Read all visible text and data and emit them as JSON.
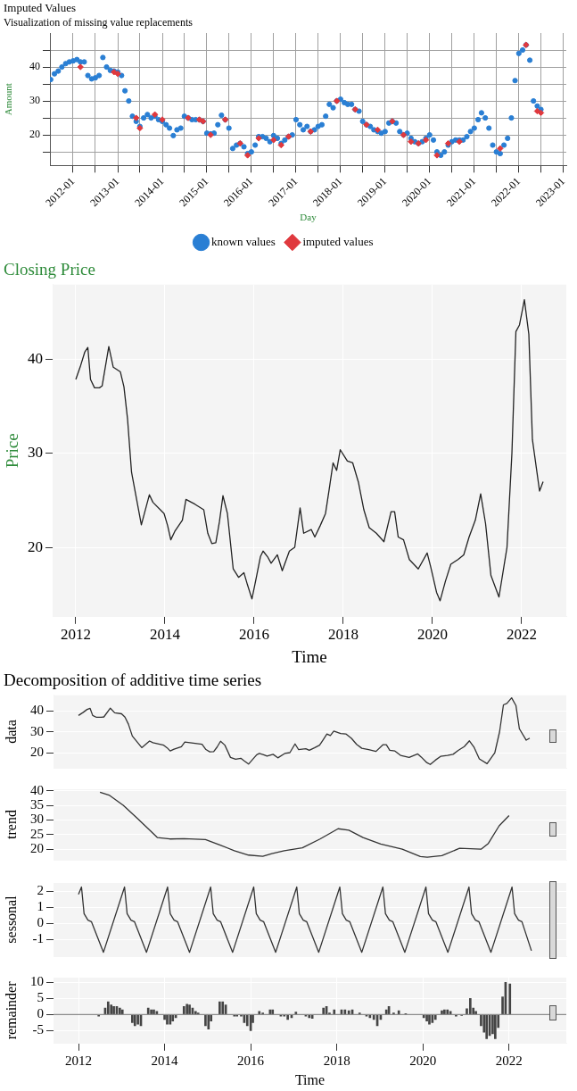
{
  "chart_data": [
    {
      "type": "scatter",
      "title": "Imputed Values",
      "subtitle": "Visualization of missing value replacements",
      "xlabel": "Day",
      "ylabel": "Amount",
      "marker": "circle",
      "legend": "bottom",
      "grid": true,
      "xlim": [
        "2011-06-25",
        "2023-01-25"
      ],
      "xticks": [
        "2012-01",
        {
          "value": "2012-07",
          "label": null
        },
        "2013-01",
        {
          "value": "2013-07",
          "label": null
        },
        "2014-01",
        {
          "value": "2014-07",
          "label": null
        },
        "2015-01",
        {
          "value": "2015-07",
          "label": null
        },
        "2016-01",
        {
          "value": "2016-07",
          "label": null
        },
        "2017-01",
        {
          "value": "2017-07",
          "label": null
        },
        "2018-01",
        {
          "value": "2018-07",
          "label": null
        },
        "2019-01",
        {
          "value": "2019-07",
          "label": null
        },
        "2020-01",
        {
          "value": "2020-07",
          "label": null
        },
        "2021-01",
        {
          "value": "2021-07",
          "label": null
        },
        "2022-01",
        {
          "value": "2022-07",
          "label": null
        },
        "2023-01"
      ],
      "ylim": [
        11,
        50
      ],
      "yticks": [
        {
          "value": 15,
          "label": null
        },
        20,
        {
          "value": 25,
          "label": null
        },
        30,
        {
          "value": 35,
          "label": null
        },
        40,
        {
          "value": 45,
          "label": null
        }
      ],
      "series": [
        {
          "name": "known values",
          "color": "#2a7fd4",
          "x": [
            "2011-07",
            "2011-08",
            "2011-09",
            "2011-10",
            "2011-11",
            "2011-12",
            "2012-01",
            "2012-02",
            "2012-03",
            "2012-04",
            "2012-05",
            "2012-06",
            "2012-07",
            "2012-08",
            "2012-09",
            "2012-10",
            "2012-11",
            "2012-12",
            "2013-01",
            "2013-02",
            "2013-03",
            "2013-04",
            "2013-05",
            "2013-06",
            "2013-07",
            "2013-08",
            "2013-09",
            "2013-10",
            "2013-11",
            "2013-12",
            "2014-01",
            "2014-02",
            "2014-03",
            "2014-04",
            "2014-05",
            "2014-06",
            "2014-07",
            "2014-08",
            "2014-09",
            "2014-10",
            "2014-11",
            "2014-12",
            "2015-01",
            "2015-02",
            "2015-03",
            "2015-04",
            "2015-05",
            "2015-06",
            "2015-07",
            "2015-08",
            "2015-09",
            "2015-10",
            "2015-11",
            "2015-12",
            "2016-01",
            "2016-02",
            "2016-03",
            "2016-04",
            "2016-05",
            "2016-06",
            "2016-07",
            "2016-08",
            "2016-09",
            "2016-10",
            "2016-11",
            "2016-12",
            "2017-01",
            "2017-02",
            "2017-03",
            "2017-04",
            "2017-05",
            "2017-06",
            "2017-07",
            "2017-08",
            "2017-09",
            "2017-10",
            "2017-11",
            "2017-12",
            "2018-01",
            "2018-02",
            "2018-03",
            "2018-04",
            "2018-05",
            "2018-06",
            "2018-07",
            "2018-08",
            "2018-09",
            "2018-10",
            "2018-11",
            "2018-12",
            "2019-01",
            "2019-02",
            "2019-03",
            "2019-04",
            "2019-05",
            "2019-06",
            "2019-07",
            "2019-08",
            "2019-09",
            "2019-10",
            "2019-11",
            "2019-12",
            "2020-01",
            "2020-02",
            "2020-03",
            "2020-04",
            "2020-05",
            "2020-06",
            "2020-07",
            "2020-08",
            "2020-09",
            "2020-10",
            "2020-11",
            "2020-12",
            "2021-01",
            "2021-02",
            "2021-03",
            "2021-04",
            "2021-05",
            "2021-06",
            "2021-07",
            "2021-08",
            "2021-09",
            "2021-10",
            "2021-11",
            "2021-12",
            "2022-01",
            "2022-02",
            "2022-03",
            "2022-04",
            "2022-05",
            "2022-06",
            "2022-07"
          ],
          "values": [
            36.3,
            38.0,
            38.8,
            40.0,
            41.0,
            41.5,
            41.8,
            42.2,
            41.5,
            41.5,
            37.5,
            36.5,
            36.8,
            37.5,
            42.8,
            40.0,
            39.0,
            38.8,
            38.5,
            37.5,
            33.0,
            30.0,
            25.5,
            24.0,
            22.5,
            25.0,
            26.0,
            25.0,
            25.5,
            24.5,
            24.0,
            23.0,
            22.0,
            19.8,
            21.5,
            22.0,
            25.5,
            25.0,
            24.5,
            24.5,
            24.5,
            24.0,
            20.5,
            20.3,
            20.5,
            23.0,
            25.8,
            24.5,
            22.0,
            16.0,
            17.0,
            17.5,
            16.5,
            14.5,
            15.0,
            17.0,
            19.5,
            19.5,
            19.0,
            18.0,
            19.8,
            19.0,
            17.5,
            18.5,
            19.5,
            20.0,
            24.5,
            23.0,
            21.5,
            22.5,
            21.0,
            21.5,
            22.5,
            23.0,
            25.5,
            29.0,
            28.0,
            30.0,
            30.5,
            29.5,
            29.0,
            29.0,
            27.5,
            27.0,
            24.0,
            23.0,
            22.5,
            21.5,
            21.0,
            20.5,
            21.0,
            23.5,
            24.0,
            23.5,
            21.0,
            20.0,
            20.5,
            19.0,
            18.0,
            17.5,
            18.0,
            19.0,
            20.0,
            18.5,
            15.0,
            14.0,
            15.0,
            17.0,
            18.0,
            18.5,
            18.5,
            18.5,
            19.5,
            21.0,
            22.0,
            24.5,
            26.5,
            25.0,
            22.0,
            17.0,
            15.0,
            14.5,
            17.0,
            19.0,
            25.0,
            36.0,
            44.0,
            45.0,
            46.5,
            42.0,
            30.0,
            28.5,
            27.5
          ]
        },
        {
          "name": "imputed values",
          "color": "#e0393e",
          "marker": "diamond",
          "x": [
            "2012-03",
            "2012-12",
            "2013-01",
            "2013-06",
            "2013-07",
            "2013-11",
            "2014-01",
            "2014-08",
            "2014-11",
            "2014-12",
            "2015-02",
            "2015-06",
            "2015-10",
            "2015-12",
            "2016-03",
            "2016-07",
            "2016-09",
            "2016-11",
            "2017-05",
            "2017-12",
            "2018-05",
            "2018-08",
            "2018-11",
            "2019-03",
            "2019-06",
            "2019-08",
            "2019-10",
            "2019-12",
            "2020-03",
            "2020-06",
            "2020-09",
            "2021-08",
            "2022-03",
            "2022-06",
            "2022-07"
          ],
          "values": [
            40.0,
            38.5,
            38.0,
            25.0,
            22.0,
            26.0,
            24.5,
            25.0,
            24.5,
            24.0,
            20.0,
            24.5,
            17.5,
            14.0,
            19.0,
            18.5,
            17.0,
            19.5,
            21.0,
            30.0,
            27.5,
            23.0,
            21.5,
            24.0,
            20.0,
            18.0,
            17.5,
            18.5,
            14.0,
            17.5,
            18.0,
            16.0,
            46.5,
            27.0,
            26.5
          ]
        }
      ]
    },
    {
      "type": "line",
      "title": "Closing Price",
      "xlabel": "Time",
      "ylabel": "Price",
      "grid": true,
      "xlim": [
        2011.48,
        2023
      ],
      "xticks": [
        2012,
        2014,
        2016,
        2018,
        2020,
        2022
      ],
      "ylim": [
        12.6,
        48
      ],
      "yticks": [
        20,
        30,
        40
      ],
      "x": [
        2012.0,
        2012.11,
        2012.2,
        2012.27,
        2012.33,
        2012.42,
        2012.53,
        2012.59,
        2012.74,
        2012.84,
        2013.0,
        2013.08,
        2013.16,
        2013.25,
        2013.47,
        2013.65,
        2013.73,
        2013.98,
        2014.06,
        2014.13,
        2014.22,
        2014.39,
        2014.47,
        2014.67,
        2014.87,
        2014.96,
        2015.05,
        2015.14,
        2015.22,
        2015.3,
        2015.4,
        2015.53,
        2015.65,
        2015.77,
        2015.85,
        2015.95,
        2016.04,
        2016.14,
        2016.2,
        2016.3,
        2016.38,
        2016.52,
        2016.63,
        2016.79,
        2016.91,
        2017.03,
        2017.11,
        2017.28,
        2017.36,
        2017.48,
        2017.6,
        2017.68,
        2017.77,
        2017.85,
        2017.93,
        2018.09,
        2018.21,
        2018.34,
        2018.46,
        2018.58,
        2018.74,
        2018.91,
        2019.07,
        2019.15,
        2019.23,
        2019.35,
        2019.48,
        2019.68,
        2019.88,
        2019.96,
        2020.09,
        2020.17,
        2020.29,
        2020.41,
        2020.57,
        2020.7,
        2020.82,
        2020.96,
        2021.08,
        2021.19,
        2021.31,
        2021.49,
        2021.67,
        2021.78,
        2021.87,
        2021.95,
        2022.06,
        2022.16,
        2022.24,
        2022.4,
        2022.48
      ],
      "series": [
        {
          "color": "#222222",
          "values": [
            37.9,
            39.4,
            40.8,
            41.3,
            37.9,
            37.0,
            37.0,
            37.2,
            41.4,
            39.2,
            38.7,
            37.1,
            33.7,
            28.0,
            22.4,
            25.6,
            24.8,
            23.6,
            22.3,
            20.8,
            21.7,
            22.9,
            25.1,
            24.6,
            24.0,
            21.5,
            20.4,
            20.5,
            22.7,
            25.5,
            23.6,
            17.7,
            16.8,
            17.3,
            16.0,
            14.5,
            16.6,
            19.0,
            19.6,
            19.0,
            18.3,
            19.2,
            17.5,
            19.6,
            20.0,
            24.2,
            21.5,
            21.9,
            21.1,
            22.3,
            23.6,
            26.1,
            29.0,
            28.2,
            30.4,
            29.2,
            29.0,
            26.9,
            24.0,
            22.1,
            21.5,
            20.6,
            23.8,
            23.8,
            21.1,
            20.8,
            18.7,
            17.7,
            19.4,
            17.9,
            15.2,
            14.3,
            16.4,
            18.2,
            18.7,
            19.2,
            21.1,
            22.9,
            25.7,
            22.5,
            17.0,
            14.7,
            20.0,
            30.0,
            43.0,
            43.7,
            46.4,
            42.7,
            31.5,
            26.0,
            27.0
          ]
        }
      ]
    },
    {
      "type": "line",
      "title": "Decomposition of additive time series",
      "ylabel": "data",
      "grid": true,
      "tick_labels": "y",
      "xlim": [
        2011.42,
        2023.33
      ],
      "ylim": [
        12.7,
        47.6
      ],
      "yticks": [
        20,
        30,
        40
      ],
      "x": [
        2012.0,
        2012.11,
        2012.2,
        2012.27,
        2012.33,
        2012.42,
        2012.53,
        2012.59,
        2012.74,
        2012.84,
        2013.0,
        2013.08,
        2013.16,
        2013.25,
        2013.47,
        2013.65,
        2013.73,
        2013.98,
        2014.06,
        2014.13,
        2014.22,
        2014.39,
        2014.47,
        2014.67,
        2014.87,
        2014.96,
        2015.05,
        2015.14,
        2015.22,
        2015.3,
        2015.4,
        2015.53,
        2015.65,
        2015.77,
        2015.85,
        2015.95,
        2016.04,
        2016.14,
        2016.2,
        2016.3,
        2016.38,
        2016.52,
        2016.63,
        2016.79,
        2016.91,
        2017.03,
        2017.11,
        2017.28,
        2017.36,
        2017.48,
        2017.6,
        2017.68,
        2017.77,
        2017.85,
        2017.93,
        2018.09,
        2018.21,
        2018.34,
        2018.46,
        2018.58,
        2018.74,
        2018.91,
        2019.07,
        2019.15,
        2019.23,
        2019.35,
        2019.48,
        2019.68,
        2019.88,
        2019.96,
        2020.09,
        2020.17,
        2020.29,
        2020.41,
        2020.57,
        2020.7,
        2020.82,
        2020.96,
        2021.08,
        2021.19,
        2021.31,
        2021.49,
        2021.67,
        2021.78,
        2021.87,
        2021.95,
        2022.06,
        2022.16,
        2022.24,
        2022.4,
        2022.48
      ],
      "series": [
        {
          "color": "#333333",
          "values": [
            37.9,
            39.4,
            40.8,
            41.3,
            37.9,
            37.0,
            37.0,
            37.2,
            41.4,
            39.2,
            38.7,
            37.1,
            33.7,
            28.0,
            22.4,
            25.6,
            24.8,
            23.6,
            22.3,
            20.8,
            21.7,
            22.9,
            25.1,
            24.6,
            24.0,
            21.5,
            20.4,
            20.5,
            22.7,
            25.5,
            23.6,
            17.7,
            16.8,
            17.3,
            16.0,
            14.5,
            16.6,
            19.0,
            19.6,
            19.0,
            18.3,
            19.2,
            17.5,
            19.6,
            20.0,
            24.2,
            21.5,
            21.9,
            21.1,
            22.3,
            23.6,
            26.1,
            29.0,
            28.2,
            30.4,
            29.2,
            29.0,
            26.9,
            24.0,
            22.1,
            21.5,
            20.6,
            23.8,
            23.8,
            21.1,
            20.8,
            18.7,
            17.7,
            19.4,
            17.9,
            15.2,
            14.3,
            16.4,
            18.2,
            18.7,
            19.2,
            21.1,
            22.9,
            25.7,
            22.5,
            17.0,
            14.7,
            20.0,
            30.0,
            43.0,
            43.7,
            46.4,
            42.7,
            31.5,
            26.0,
            27.0
          ]
        }
      ]
    },
    {
      "type": "line",
      "ylabel": "trend",
      "grid": true,
      "tick_labels": "y",
      "xlim": [
        2011.42,
        2023.33
      ],
      "ylim": [
        16.4,
        40.5
      ],
      "yticks": [
        20,
        25,
        30,
        35,
        40
      ],
      "x": [
        2012.5,
        2012.71,
        2013.04,
        2013.37,
        2013.62,
        2013.83,
        2014.12,
        2014.45,
        2014.95,
        2015.28,
        2015.62,
        2015.95,
        2016.28,
        2016.49,
        2016.78,
        2017.2,
        2017.61,
        2018.03,
        2018.28,
        2018.61,
        2019.02,
        2019.52,
        2019.94,
        2020.1,
        2020.44,
        2020.85,
        2021.35,
        2021.52,
        2021.77,
        2022.0
      ],
      "series": [
        {
          "color": "#333333",
          "values": [
            39.5,
            38.5,
            35.0,
            30.5,
            27.0,
            24.0,
            23.5,
            23.6,
            23.3,
            21.5,
            19.5,
            18.0,
            17.6,
            18.5,
            19.5,
            20.5,
            23.5,
            27.0,
            26.5,
            24.0,
            21.8,
            20.0,
            17.5,
            17.3,
            17.8,
            20.3,
            20.0,
            22.0,
            28.0,
            31.5
          ]
        }
      ]
    },
    {
      "type": "line",
      "ylabel": "sessonal",
      "grid": true,
      "tick_labels": "y",
      "xlim": [
        2011.42,
        2023.33
      ],
      "ylim": [
        -2.04,
        2.5
      ],
      "yticks": [
        -1,
        0,
        1,
        2
      ],
      "x": [
        2012.0,
        2012.07,
        2012.13,
        2012.22,
        2012.3,
        2012.58,
        2013.07,
        2013.13,
        2013.22,
        2013.3,
        2013.58,
        2014.07,
        2014.13,
        2014.22,
        2014.3,
        2014.58,
        2015.07,
        2015.13,
        2015.22,
        2015.3,
        2015.58,
        2016.07,
        2016.13,
        2016.22,
        2016.3,
        2016.58,
        2017.07,
        2017.13,
        2017.22,
        2017.3,
        2017.58,
        2018.07,
        2018.13,
        2018.22,
        2018.3,
        2018.58,
        2019.07,
        2019.13,
        2019.22,
        2019.3,
        2019.58,
        2020.07,
        2020.13,
        2020.22,
        2020.3,
        2020.58,
        2021.07,
        2021.13,
        2021.22,
        2021.3,
        2021.58,
        2022.07,
        2022.13,
        2022.22,
        2022.3,
        2022.52
      ],
      "series": [
        {
          "color": "#333333",
          "values": [
            1.8,
            2.25,
            0.6,
            0.2,
            0.1,
            -1.8,
            2.25,
            0.6,
            0.2,
            0.1,
            -1.8,
            2.25,
            0.6,
            0.2,
            0.1,
            -1.8,
            2.25,
            0.6,
            0.2,
            0.1,
            -1.8,
            2.25,
            0.6,
            0.2,
            0.1,
            -1.8,
            2.25,
            0.6,
            0.2,
            0.1,
            -1.8,
            2.25,
            0.6,
            0.2,
            0.1,
            -1.8,
            2.25,
            0.6,
            0.2,
            0.1,
            -1.8,
            2.25,
            0.6,
            0.2,
            0.1,
            -1.8,
            2.25,
            0.6,
            0.2,
            0.1,
            -1.8,
            2.25,
            0.6,
            0.2,
            0.1,
            -1.7
          ]
        }
      ]
    },
    {
      "type": "bar",
      "xlabel": "Time",
      "ylabel": "remainder",
      "grid": true,
      "xlim": [
        2011.42,
        2023.33
      ],
      "xticks": [
        2012,
        2014,
        2016,
        2018,
        2020,
        2022
      ],
      "ylim": [
        -9,
        11.5
      ],
      "yticks": [
        -5,
        0,
        5,
        10
      ],
      "ref_lines": [
        {
          "axis": "y",
          "value": 0,
          "color": "#8c8c8c"
        }
      ],
      "x": [
        2012.47,
        2012.62,
        2012.69,
        2012.76,
        2012.82,
        2012.89,
        2012.96,
        2013.02,
        2013.25,
        2013.31,
        2013.38,
        2013.45,
        2013.62,
        2013.69,
        2013.75,
        2013.82,
        2014.0,
        2014.06,
        2014.13,
        2014.19,
        2014.26,
        2014.45,
        2014.52,
        2014.58,
        2014.65,
        2014.72,
        2014.78,
        2014.95,
        2015.02,
        2015.08,
        2015.28,
        2015.35,
        2015.42,
        2015.62,
        2015.68,
        2015.78,
        2015.85,
        2015.92,
        2016.0,
        2016.05,
        2016.2,
        2016.28,
        2016.45,
        2016.51,
        2016.7,
        2016.78,
        2016.86,
        2016.95,
        2017.05,
        2017.28,
        2017.36,
        2017.43,
        2017.69,
        2017.76,
        2017.83,
        2017.94,
        2018.11,
        2018.19,
        2018.28,
        2018.36,
        2018.53,
        2018.69,
        2018.77,
        2018.86,
        2018.94,
        2019.02,
        2019.15,
        2019.21,
        2019.32,
        2019.44,
        2019.6,
        2020.02,
        2020.09,
        2020.15,
        2020.22,
        2020.29,
        2020.44,
        2020.5,
        2020.57,
        2020.64,
        2020.77,
        2020.9,
        2021.02,
        2021.1,
        2021.17,
        2021.23,
        2021.35,
        2021.42,
        2021.48,
        2021.55,
        2021.62,
        2021.68,
        2021.75,
        2021.85,
        2021.92,
        2022.02
      ],
      "series": [
        {
          "color": "#444444",
          "values": [
            -0.5,
            2.0,
            4.0,
            3.0,
            2.5,
            2.5,
            2.0,
            1.5,
            -2.5,
            -3.5,
            -3.0,
            -3.5,
            2.0,
            1.5,
            1.5,
            1.0,
            -1.5,
            -3.0,
            -3.0,
            -2.0,
            -1.0,
            2.5,
            3.2,
            3.0,
            2.0,
            1.0,
            0.5,
            -3.5,
            -4.5,
            -2.0,
            4.0,
            4.0,
            3.0,
            -0.5,
            -0.5,
            -0.5,
            -2.5,
            -3.5,
            -5.0,
            -2.5,
            1.0,
            0.5,
            1.5,
            1.5,
            -0.5,
            -0.5,
            -1.5,
            -1.0,
            0.8,
            -0.5,
            -1.0,
            -1.2,
            2.0,
            2.5,
            0.5,
            1.5,
            1.5,
            1.5,
            1.2,
            1.5,
            0.5,
            -0.5,
            -1.0,
            -1.5,
            -3.5,
            -1.5,
            1.5,
            2.5,
            0.5,
            1.2,
            0.3,
            -1.0,
            -2.0,
            -3.0,
            -2.5,
            -1.5,
            1.2,
            1.5,
            1.5,
            1.0,
            -0.5,
            -0.3,
            1.8,
            5.0,
            2.0,
            1.0,
            -3.5,
            -5.5,
            -7.5,
            -6.5,
            -6.0,
            -7.5,
            -4.0,
            5.5,
            10.0,
            9.5
          ]
        }
      ]
    }
  ]
}
